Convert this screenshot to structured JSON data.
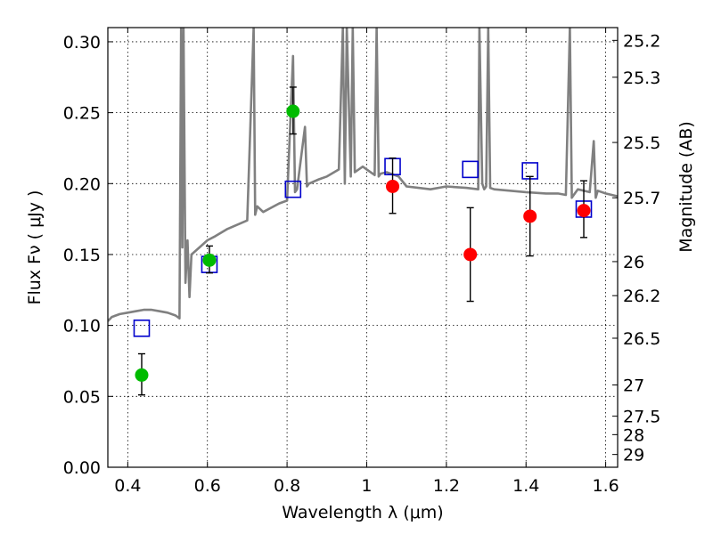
{
  "chart_data": {
    "type": "scatter",
    "xlabel": "Wavelength  λ (μm)",
    "ylabel": "Flux  Fν  ( μJy )",
    "y2label": "Magnitude (AB)",
    "xlim": [
      0.35,
      1.63
    ],
    "ylim": [
      0.0,
      0.31
    ],
    "grid": true,
    "x_ticks": [
      "0.4",
      "0.6",
      "0.8",
      "1",
      "1.2",
      "1.4",
      "1.6"
    ],
    "x_tick_values": [
      0.4,
      0.6,
      0.8,
      1.0,
      1.2,
      1.4,
      1.6
    ],
    "y_ticks": [
      "0.00",
      "0.05",
      "0.10",
      "0.15",
      "0.20",
      "0.25",
      "0.30"
    ],
    "y_tick_values": [
      0.0,
      0.05,
      0.1,
      0.15,
      0.2,
      0.25,
      0.3
    ],
    "y2_ticks": [
      {
        "label": "25.2",
        "flux": 0.301
      },
      {
        "label": "25.3",
        "flux": 0.275
      },
      {
        "label": "25.5",
        "flux": 0.229
      },
      {
        "label": "25.7",
        "flux": 0.19
      },
      {
        "label": "26",
        "flux": 0.145
      },
      {
        "label": "26.2",
        "flux": 0.121
      },
      {
        "label": "26.5",
        "flux": 0.091
      },
      {
        "label": "27",
        "flux": 0.058
      },
      {
        "label": "27.5",
        "flux": 0.036
      },
      {
        "label": "28",
        "flux": 0.023
      },
      {
        "label": "29",
        "flux": 0.009
      }
    ],
    "series": [
      {
        "type": "line",
        "color": "#808080",
        "x": [
          0.35,
          0.36,
          0.38,
          0.4,
          0.42,
          0.44,
          0.46,
          0.48,
          0.5,
          0.52,
          0.53,
          0.534,
          0.537,
          0.54,
          0.545,
          0.55,
          0.555,
          0.56,
          0.58,
          0.6,
          0.62,
          0.65,
          0.7,
          0.716,
          0.72,
          0.725,
          0.74,
          0.78,
          0.8,
          0.815,
          0.82,
          0.825,
          0.845,
          0.85,
          0.855,
          0.88,
          0.9,
          0.93,
          0.94,
          0.945,
          0.95,
          0.96,
          0.965,
          0.97,
          0.99,
          1.0,
          1.02,
          1.025,
          1.03,
          1.035,
          1.05,
          1.08,
          1.1,
          1.13,
          1.16,
          1.2,
          1.25,
          1.28,
          1.283,
          1.29,
          1.295,
          1.3,
          1.305,
          1.31,
          1.32,
          1.36,
          1.4,
          1.45,
          1.48,
          1.5,
          1.51,
          1.515,
          1.52,
          1.53,
          1.56,
          1.57,
          1.575,
          1.58,
          1.6,
          1.63
        ],
        "y": [
          0.103,
          0.106,
          0.108,
          0.109,
          0.11,
          0.111,
          0.111,
          0.11,
          0.109,
          0.107,
          0.105,
          0.31,
          0.155,
          0.31,
          0.13,
          0.16,
          0.12,
          0.15,
          0.155,
          0.16,
          0.163,
          0.168,
          0.174,
          0.31,
          0.178,
          0.184,
          0.18,
          0.186,
          0.188,
          0.29,
          0.194,
          0.196,
          0.24,
          0.198,
          0.2,
          0.203,
          0.205,
          0.21,
          0.31,
          0.2,
          0.31,
          0.205,
          0.31,
          0.208,
          0.212,
          0.21,
          0.206,
          0.31,
          0.205,
          0.207,
          0.208,
          0.205,
          0.198,
          0.197,
          0.196,
          0.198,
          0.197,
          0.196,
          0.31,
          0.2,
          0.196,
          0.198,
          0.31,
          0.197,
          0.196,
          0.195,
          0.194,
          0.193,
          0.193,
          0.192,
          0.31,
          0.19,
          0.192,
          0.196,
          0.194,
          0.23,
          0.19,
          0.195,
          0.193,
          0.191
        ]
      },
      {
        "type": "scatter",
        "marker": "open-square",
        "color": "#0000cc",
        "x": [
          0.435,
          0.605,
          0.815,
          1.065,
          1.26,
          1.41,
          1.545
        ],
        "y": [
          0.098,
          0.143,
          0.196,
          0.212,
          0.21,
          0.209,
          0.182
        ]
      },
      {
        "type": "scatter",
        "marker": "circle",
        "color": "#00bb00",
        "x": [
          0.435,
          0.605,
          0.815
        ],
        "y": [
          0.065,
          0.146,
          0.251
        ],
        "err_low": [
          0.051,
          0.137,
          0.235
        ],
        "err_high": [
          0.08,
          0.156,
          0.268
        ]
      },
      {
        "type": "scatter",
        "marker": "circle",
        "color": "#ff0000",
        "x": [
          1.065,
          1.26,
          1.41,
          1.545
        ],
        "y": [
          0.198,
          0.15,
          0.177,
          0.181
        ],
        "err_low": [
          0.179,
          0.117,
          0.149,
          0.162
        ],
        "err_high": [
          0.218,
          0.183,
          0.205,
          0.202
        ]
      }
    ]
  }
}
